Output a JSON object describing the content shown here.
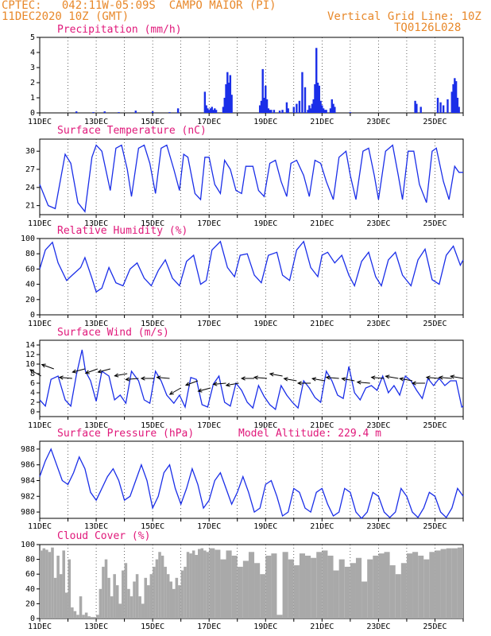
{
  "header": {
    "station": "CPTEC:   042:11W-05:09S  CAMPO MAIOR (PI)",
    "run": "11DEC2020 10Z (GMT)",
    "grid_line": "Vertical Grid Line: 10Z",
    "code": "TQ0126L028"
  },
  "colors": {
    "line": "#1a2ee8",
    "bar": "#1a2ee8",
    "cloud": "#a9a9a9",
    "title": "#e0187a",
    "header": "#e8882a"
  },
  "x_axis": {
    "start_day": 11,
    "end_day": 26,
    "labels": [
      "11DEC",
      "13DEC",
      "15DEC",
      "17DEC",
      "19DEC",
      "21DEC",
      "23DEC",
      "25DEC"
    ],
    "label_days": [
      11,
      13,
      15,
      17,
      19,
      21,
      23,
      25
    ]
  },
  "chart_data": [
    {
      "id": "precip",
      "type": "bar",
      "title": "Precipitation  (mm/h)",
      "ylim": [
        0,
        5
      ],
      "yticks": [
        0,
        1,
        2,
        3,
        4,
        5
      ],
      "x_day": [
        12.3,
        12.9,
        13.3,
        13.8,
        14.4,
        15.0,
        15.6,
        15.9,
        16.85,
        16.9,
        16.95,
        17.0,
        17.05,
        17.1,
        17.15,
        17.2,
        17.25,
        17.5,
        17.55,
        17.6,
        17.65,
        17.7,
        17.75,
        17.8,
        18.8,
        18.85,
        18.9,
        18.95,
        19.0,
        19.05,
        19.1,
        19.15,
        19.2,
        19.3,
        19.5,
        19.6,
        19.75,
        19.8,
        20.0,
        20.1,
        20.2,
        20.3,
        20.4,
        20.5,
        20.55,
        20.6,
        20.65,
        20.7,
        20.75,
        20.8,
        20.85,
        20.9,
        20.95,
        21.0,
        21.05,
        21.1,
        21.15,
        21.3,
        21.35,
        21.4,
        21.45,
        22.0,
        24.3,
        24.35,
        24.5,
        25.1,
        25.2,
        25.3,
        25.45,
        25.6,
        25.65,
        25.7,
        25.75,
        25.8,
        25.85
      ],
      "values": [
        0.1,
        0.05,
        0.1,
        0.05,
        0.15,
        0.1,
        0.05,
        0.3,
        1.4,
        0.5,
        0.3,
        0.2,
        0.3,
        0.4,
        0.2,
        0.3,
        0.2,
        0.4,
        1.0,
        1.9,
        2.7,
        2.0,
        2.5,
        1.2,
        0.5,
        0.8,
        2.9,
        1.0,
        1.8,
        0.9,
        0.3,
        0.2,
        0.2,
        0.2,
        0.15,
        0.2,
        0.7,
        0.3,
        0.4,
        0.6,
        0.8,
        2.7,
        1.7,
        0.2,
        0.5,
        0.3,
        0.6,
        0.9,
        1.9,
        4.3,
        2.0,
        1.8,
        0.8,
        0.5,
        0.3,
        0.2,
        0.2,
        0.3,
        0.9,
        0.6,
        0.4,
        0.05,
        0.8,
        0.6,
        0.4,
        1.0,
        0.7,
        0.5,
        0.9,
        1.4,
        1.9,
        2.3,
        2.1,
        1.0,
        0.4
      ]
    },
    {
      "id": "temp",
      "type": "line",
      "title": "Surface Temperature (nC)",
      "ylim": [
        19.5,
        32
      ],
      "yticks": [
        21,
        24,
        27,
        30
      ],
      "x_day": [
        11,
        11.3,
        11.55,
        11.9,
        12.1,
        12.35,
        12.6,
        12.85,
        13.0,
        13.2,
        13.5,
        13.7,
        13.9,
        14.1,
        14.25,
        14.5,
        14.7,
        14.9,
        15.1,
        15.3,
        15.5,
        15.75,
        15.95,
        16.1,
        16.25,
        16.5,
        16.7,
        16.85,
        17.0,
        17.2,
        17.4,
        17.55,
        17.75,
        17.95,
        18.15,
        18.3,
        18.55,
        18.75,
        18.95,
        19.15,
        19.35,
        19.55,
        19.75,
        19.9,
        20.1,
        20.35,
        20.55,
        20.75,
        20.95,
        21.15,
        21.4,
        21.6,
        21.85,
        22.0,
        22.2,
        22.45,
        22.65,
        22.85,
        23.0,
        23.25,
        23.5,
        23.7,
        23.85,
        24.05,
        24.25,
        24.45,
        24.7,
        24.9,
        25.05,
        25.3,
        25.5,
        25.7,
        25.85,
        26.0
      ],
      "values": [
        24.5,
        21,
        20.5,
        29.5,
        28,
        21.5,
        20,
        29,
        31,
        30,
        23.5,
        30.5,
        31,
        27,
        22.5,
        30.5,
        31,
        28,
        23,
        30.5,
        31,
        27,
        23.5,
        29.5,
        29,
        23,
        22,
        29,
        29,
        24.5,
        23,
        28.5,
        27,
        23.5,
        23,
        27.5,
        27.5,
        23.5,
        22.5,
        28,
        28.5,
        25,
        22.5,
        28,
        28.5,
        26,
        22.5,
        28.5,
        28,
        25,
        22,
        29,
        30,
        26,
        22,
        30,
        30.5,
        26,
        22,
        30,
        31,
        26,
        22,
        30,
        30,
        24.5,
        21.5,
        30,
        30.5,
        25,
        22,
        27.5,
        26.5,
        26.5
      ]
    },
    {
      "id": "rh",
      "type": "line",
      "title": "Relative Humidity (%)",
      "ylim": [
        0,
        100
      ],
      "yticks": [
        0,
        20,
        40,
        60,
        80,
        100
      ],
      "x_day": [
        11,
        11.2,
        11.45,
        11.65,
        11.95,
        12.15,
        12.45,
        12.6,
        12.85,
        13.0,
        13.2,
        13.45,
        13.7,
        13.95,
        14.2,
        14.45,
        14.7,
        14.95,
        15.2,
        15.45,
        15.7,
        15.95,
        16.2,
        16.45,
        16.7,
        16.9,
        17.1,
        17.4,
        17.65,
        17.9,
        18.1,
        18.35,
        18.6,
        18.85,
        19.1,
        19.4,
        19.6,
        19.85,
        20.1,
        20.35,
        20.6,
        20.85,
        21.0,
        21.2,
        21.45,
        21.7,
        21.95,
        22.15,
        22.4,
        22.65,
        22.9,
        23.1,
        23.35,
        23.6,
        23.85,
        24.15,
        24.4,
        24.65,
        24.9,
        25.15,
        25.4,
        25.65,
        25.9,
        26.0
      ],
      "values": [
        60,
        85,
        95,
        68,
        45,
        52,
        62,
        75,
        48,
        30,
        35,
        62,
        42,
        38,
        60,
        68,
        48,
        38,
        58,
        72,
        48,
        38,
        70,
        78,
        40,
        45,
        85,
        96,
        62,
        50,
        78,
        80,
        52,
        42,
        78,
        82,
        52,
        45,
        85,
        96,
        62,
        50,
        78,
        82,
        68,
        78,
        52,
        38,
        70,
        82,
        50,
        38,
        72,
        82,
        52,
        38,
        72,
        86,
        46,
        40,
        78,
        90,
        65,
        72
      ]
    },
    {
      "id": "wind",
      "type": "line",
      "title": "Surface Wind (m/s)",
      "ylim": [
        -1,
        15
      ],
      "yticks": [
        0,
        2,
        4,
        6,
        8,
        10,
        12,
        14
      ],
      "x_day": [
        11,
        11.2,
        11.4,
        11.65,
        11.9,
        12.1,
        12.3,
        12.5,
        12.62,
        12.8,
        13.0,
        13.2,
        13.45,
        13.65,
        13.85,
        14.05,
        14.25,
        14.5,
        14.7,
        14.9,
        15.1,
        15.3,
        15.5,
        15.75,
        15.95,
        16.15,
        16.35,
        16.55,
        16.75,
        16.95,
        17.15,
        17.35,
        17.55,
        17.75,
        17.95,
        18.15,
        18.35,
        18.55,
        18.75,
        18.95,
        19.15,
        19.35,
        19.55,
        19.75,
        19.95,
        20.15,
        20.35,
        20.55,
        20.75,
        20.95,
        21.15,
        21.35,
        21.55,
        21.75,
        21.95,
        22.15,
        22.35,
        22.55,
        22.75,
        22.95,
        23.15,
        23.35,
        23.55,
        23.75,
        23.95,
        24.15,
        24.35,
        24.55,
        24.75,
        24.95,
        25.15,
        25.35,
        25.55,
        25.75,
        25.95,
        26.0
      ],
      "values": [
        2.5,
        1.2,
        6.8,
        7.5,
        2.5,
        1.2,
        7.8,
        13,
        8.5,
        6.5,
        2.2,
        8.5,
        7.5,
        2.5,
        3.5,
        1.8,
        8.5,
        6.5,
        2.5,
        1.8,
        8.5,
        6.5,
        3.5,
        1.8,
        3.5,
        1.0,
        7.2,
        6.8,
        1.5,
        1.0,
        5.8,
        7.5,
        2.0,
        1.2,
        6.0,
        4.5,
        2.0,
        0.8,
        5.5,
        3.2,
        1.5,
        0.5,
        5.5,
        3.5,
        2.0,
        0.8,
        6.5,
        5.0,
        3.0,
        2.0,
        8.5,
        6.5,
        3.5,
        2.8,
        9.5,
        4.0,
        2.5,
        5.0,
        5.5,
        4.5,
        7.5,
        4.0,
        5.5,
        3.5,
        7.5,
        6.5,
        4.5,
        2.8,
        7.0,
        5.5,
        7.0,
        5.5,
        6.5,
        6.5,
        1.0,
        1.2
      ],
      "arrow_day": [
        11.05,
        11.5,
        12.15,
        12.6,
        13.05,
        13.5,
        14.1,
        14.5,
        15.05,
        15.6,
        16.0,
        16.6,
        17.05,
        17.6,
        18.05,
        18.6,
        19.05,
        19.6,
        20.1,
        20.6,
        21.1,
        21.6,
        22.15,
        22.7,
        23.2,
        23.7,
        24.2,
        24.65,
        25.15,
        25.6,
        26.0
      ],
      "arrow_speed": [
        7.5,
        9,
        7,
        9,
        9,
        9,
        8,
        7,
        7,
        7,
        5,
        6.5,
        5,
        6,
        6,
        7,
        7,
        7.5,
        6.5,
        6,
        6.5,
        7,
        6.5,
        6,
        7,
        7,
        6.5,
        6,
        7,
        7,
        7
      ],
      "arrow_dir_deg": [
        150,
        160,
        175,
        195,
        200,
        195,
        190,
        185,
        180,
        175,
        210,
        200,
        195,
        185,
        190,
        180,
        175,
        170,
        170,
        180,
        170,
        175,
        170,
        175,
        175,
        170,
        170,
        180,
        175,
        175,
        170
      ]
    },
    {
      "id": "psfc",
      "type": "line",
      "title": "Surface Pressure (hPa)",
      "note": "Model Altitude: 229.4  m",
      "ylim": [
        979.2,
        989
      ],
      "yticks": [
        980,
        982,
        984,
        986,
        988
      ],
      "x_day": [
        11,
        11.2,
        11.4,
        11.6,
        11.8,
        12.0,
        12.2,
        12.4,
        12.6,
        12.8,
        13.0,
        13.2,
        13.4,
        13.6,
        13.8,
        14.0,
        14.2,
        14.4,
        14.6,
        14.8,
        15.0,
        15.2,
        15.4,
        15.6,
        15.8,
        16.0,
        16.2,
        16.4,
        16.6,
        16.8,
        17.0,
        17.2,
        17.4,
        17.6,
        17.8,
        18.0,
        18.2,
        18.4,
        18.6,
        18.8,
        19.0,
        19.2,
        19.4,
        19.6,
        19.8,
        20.0,
        20.2,
        20.4,
        20.6,
        20.8,
        21.0,
        21.2,
        21.4,
        21.6,
        21.8,
        22.0,
        22.2,
        22.4,
        22.6,
        22.8,
        23.0,
        23.2,
        23.4,
        23.6,
        23.8,
        24.0,
        24.2,
        24.4,
        24.6,
        24.8,
        25.0,
        25.2,
        25.4,
        25.6,
        25.8,
        26.0
      ],
      "values": [
        984.5,
        986.5,
        988,
        986,
        984,
        983.5,
        985,
        987,
        985.5,
        982.5,
        981.5,
        983,
        984.5,
        985.5,
        984,
        981.5,
        982,
        984,
        986,
        984,
        980.5,
        982,
        985,
        986,
        983,
        981,
        983,
        985.5,
        983.5,
        980.5,
        981.5,
        984,
        985,
        983,
        981,
        982.5,
        984.5,
        982.5,
        980,
        980.5,
        983.5,
        984,
        982,
        979.5,
        980,
        983,
        982.5,
        980.5,
        980,
        982.5,
        983,
        981,
        979.5,
        980,
        983,
        982.5,
        980,
        979.2,
        980,
        982.5,
        982,
        980,
        979.3,
        980,
        983,
        982,
        980,
        979.3,
        980.5,
        982.5,
        982,
        980,
        979.3,
        980.5,
        983,
        982
      ]
    },
    {
      "id": "cloud",
      "type": "area",
      "title": "Cloud Cover (%)",
      "ylim": [
        0,
        100
      ],
      "yticks": [
        0,
        20,
        40,
        60,
        80,
        100
      ],
      "x_day": [
        11,
        11.1,
        11.2,
        11.3,
        11.4,
        11.5,
        11.6,
        11.7,
        11.8,
        11.9,
        12.0,
        12.1,
        12.2,
        12.3,
        12.4,
        12.5,
        12.6,
        12.7,
        12.8,
        12.9,
        13.0,
        13.1,
        13.2,
        13.3,
        13.4,
        13.5,
        13.6,
        13.7,
        13.8,
        13.9,
        14.0,
        14.1,
        14.2,
        14.3,
        14.4,
        14.5,
        14.6,
        14.7,
        14.8,
        14.9,
        15.0,
        15.1,
        15.2,
        15.3,
        15.4,
        15.5,
        15.6,
        15.7,
        15.8,
        15.9,
        16.0,
        16.1,
        16.2,
        16.3,
        16.4,
        16.5,
        16.6,
        16.7,
        16.8,
        16.9,
        17.0,
        17.2,
        17.4,
        17.6,
        17.8,
        18.0,
        18.2,
        18.4,
        18.6,
        18.8,
        19.0,
        19.2,
        19.4,
        19.6,
        19.8,
        20.0,
        20.2,
        20.4,
        20.6,
        20.8,
        21.0,
        21.2,
        21.4,
        21.6,
        21.8,
        22.0,
        22.2,
        22.4,
        22.6,
        22.8,
        23.0,
        23.2,
        23.4,
        23.6,
        23.8,
        24.0,
        24.2,
        24.4,
        24.6,
        24.8,
        25.0,
        25.2,
        25.4,
        25.6,
        25.8,
        26.0
      ],
      "values": [
        92,
        95,
        93,
        90,
        96,
        55,
        85,
        60,
        92,
        35,
        80,
        15,
        10,
        5,
        30,
        5,
        8,
        3,
        2,
        2,
        5,
        40,
        70,
        80,
        55,
        30,
        60,
        45,
        20,
        65,
        75,
        40,
        30,
        50,
        60,
        30,
        20,
        55,
        45,
        60,
        70,
        80,
        90,
        85,
        70,
        60,
        50,
        40,
        55,
        45,
        65,
        70,
        90,
        88,
        92,
        86,
        94,
        95,
        92,
        90,
        95,
        93,
        80,
        92,
        85,
        70,
        78,
        90,
        75,
        60,
        85,
        88,
        5,
        90,
        80,
        72,
        88,
        85,
        82,
        90,
        92,
        85,
        65,
        80,
        70,
        75,
        82,
        50,
        80,
        85,
        88,
        90,
        72,
        60,
        75,
        88,
        90,
        85,
        80,
        90,
        92,
        94,
        95,
        95,
        96,
        96
      ]
    }
  ]
}
